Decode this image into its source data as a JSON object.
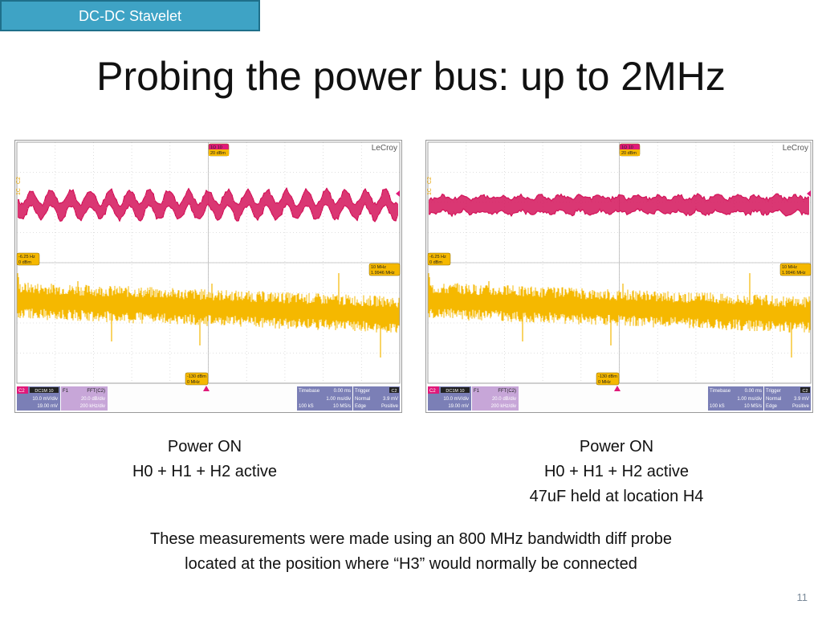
{
  "header": {
    "tag": "DC-DC Stavelet",
    "title": "Probing the power bus: up to 2MHz"
  },
  "scopes": [
    {
      "brand": "LeCroy",
      "c2_marker_top": "1Ω 10",
      "c2_marker_top_sub": "20 dBm",
      "time_marker_left": "-6.25 Hz",
      "time_marker_left_sub": "0 dBm",
      "f1_marker_right": "10 MHz",
      "f1_marker_right_sub": "1.9946 MHz",
      "bottom_marker": "-130 dBm",
      "bottom_marker_sub": "0 MHz",
      "ch_label": "C2",
      "ch_coupling": "DC1M 10",
      "ch_scale": "10.0 mV/div",
      "ch_offset": "19.00 mV",
      "f1_label": "F1",
      "f1_func": "FFT(C2)",
      "f1_scale": "20.0 dB/div",
      "f1_hscale": "200 kHz/div",
      "tb_label": "Timebase",
      "tb_delay": "0.00 ms",
      "tb_scale": "1.00 ms/div",
      "tb_samples": "100 kS",
      "tb_rate": "10 MS/s",
      "trig_label": "Trigger",
      "trig_ch": "C2",
      "trig_mode": "Normal",
      "trig_level": "3.9 mV",
      "trig_type": "Edge",
      "trig_slope": "Positive",
      "side_label_1": "1C",
      "side_label_2": "C2",
      "time_amp": 1
    },
    {
      "brand": "LeCroy",
      "c2_marker_top": "1Ω 10",
      "c2_marker_top_sub": "20 dBm",
      "time_marker_left": "-6.25 Hz",
      "time_marker_left_sub": "0 dBm",
      "f1_marker_right": "10 MHz",
      "f1_marker_right_sub": "1.9946 MHz",
      "bottom_marker": "-130 dBm",
      "bottom_marker_sub": "0 MHz",
      "ch_label": "C2",
      "ch_coupling": "DC1M 10",
      "ch_scale": "10.0 mV/div",
      "ch_offset": "19.00 mV",
      "f1_label": "F1",
      "f1_func": "FFT(C2)",
      "f1_scale": "20.0 dB/div",
      "f1_hscale": "200 kHz/div",
      "tb_label": "Timebase",
      "tb_delay": "0.00 ms",
      "tb_scale": "1.00 ms/div",
      "tb_samples": "100 kS",
      "tb_rate": "10 MS/s",
      "trig_label": "Trigger",
      "trig_ch": "C2",
      "trig_mode": "Normal",
      "trig_level": "3.9 mV",
      "trig_type": "Edge",
      "trig_slope": "Positive",
      "side_label_1": "1C",
      "side_label_2": "C2",
      "time_amp": 0.25
    }
  ],
  "captions": {
    "left": [
      "Power ON",
      "H0 + H1 + H2 active"
    ],
    "right": [
      "Power ON",
      "H0 + H1 + H2 active",
      "47uF held at location H4"
    ]
  },
  "note": [
    "These measurements were made using an 800 MHz bandwidth diff probe",
    "located at the position where “H3” would normally be connected"
  ],
  "page_number": "11",
  "colors": {
    "time_trace": "#d4145a",
    "fft_trace": "#f5b800",
    "c2_badge": "#e0197a",
    "f1_badge": "#c7a6d8",
    "panel_blue": "#7b7fb6",
    "tag_bg": "#3ea3c5"
  }
}
